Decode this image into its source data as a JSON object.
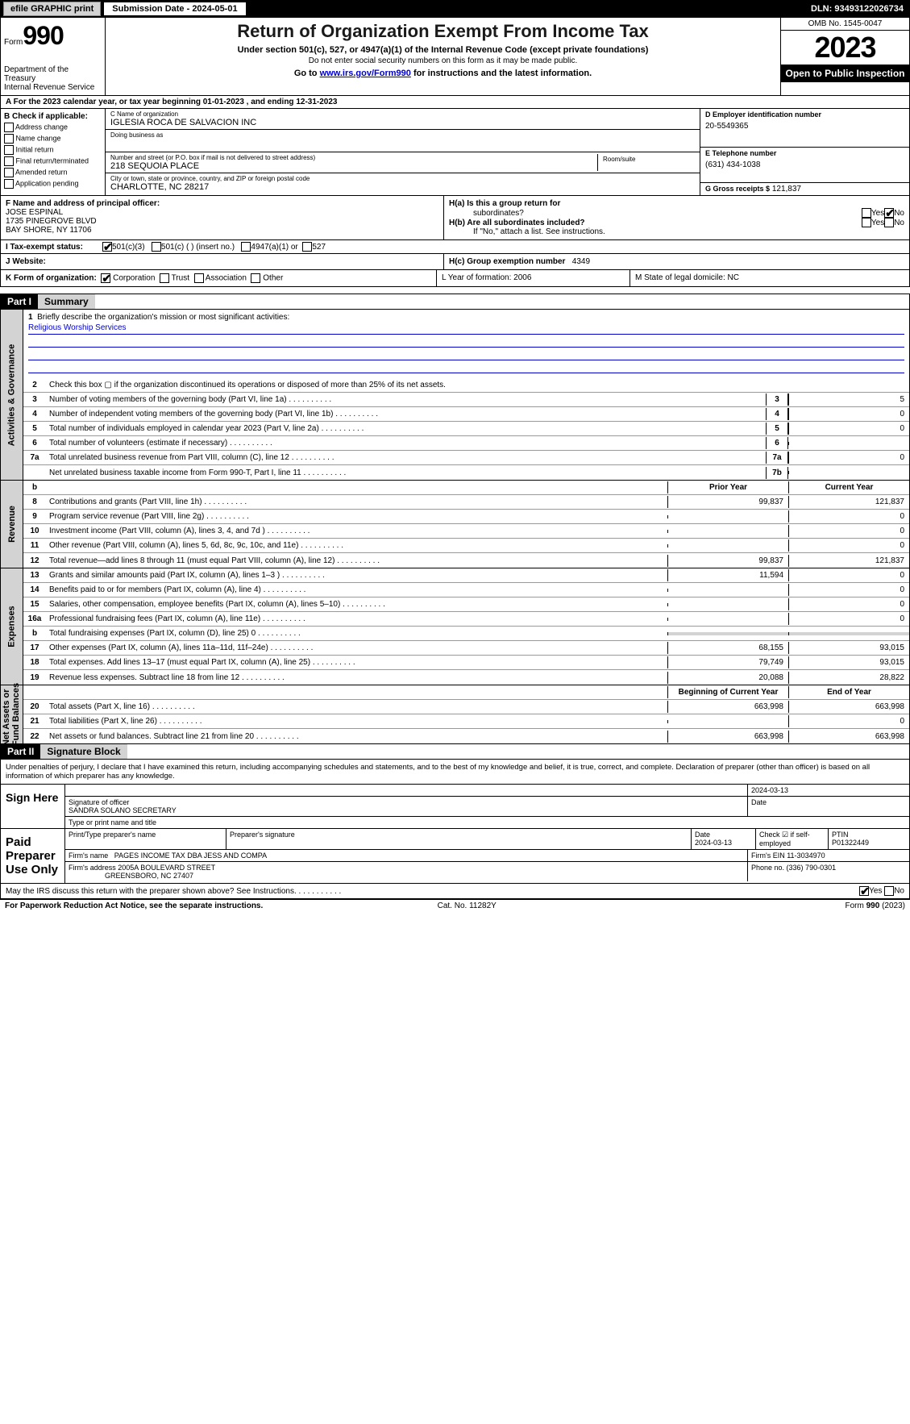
{
  "topbar": {
    "efile": "efile GRAPHIC print",
    "submission": "Submission Date - 2024-05-01",
    "dln": "DLN: 93493122026734"
  },
  "header": {
    "form_label": "Form",
    "form_no": "990",
    "dept": "Department of the Treasury",
    "irs": "Internal Revenue Service",
    "title": "Return of Organization Exempt From Income Tax",
    "sub1": "Under section 501(c), 527, or 4947(a)(1) of the Internal Revenue Code (except private foundations)",
    "sub2": "Do not enter social security numbers on this form as it may be made public.",
    "sub3_pre": "Go to ",
    "sub3_link": "www.irs.gov/Form990",
    "sub3_post": " for instructions and the latest information.",
    "omb": "OMB No. 1545-0047",
    "year": "2023",
    "open": "Open to Public Inspection"
  },
  "row_a": "A For the 2023 calendar year, or tax year beginning 01-01-2023   , and ending 12-31-2023",
  "col_b": {
    "hdr": "B Check if applicable:",
    "items": [
      "Address change",
      "Name change",
      "Initial return",
      "Final return/terminated",
      "Amended return",
      "Application pending"
    ]
  },
  "col_c": {
    "name_lbl": "C Name of organization",
    "name": "IGLESIA ROCA DE SALVACION INC",
    "dba_lbl": "Doing business as",
    "addr_lbl": "Number and street (or P.O. box if mail is not delivered to street address)",
    "addr": "218 SEQUOIA PLACE",
    "room_lbl": "Room/suite",
    "city_lbl": "City or town, state or province, country, and ZIP or foreign postal code",
    "city": "CHARLOTTE, NC  28217"
  },
  "col_d": {
    "lbl": "D Employer identification number",
    "val": "20-5549365"
  },
  "col_e": {
    "lbl": "E Telephone number",
    "val": "(631) 434-1038"
  },
  "col_g": {
    "lbl": "G Gross receipts $",
    "val": "121,837"
  },
  "row_f": {
    "lbl": "F  Name and address of principal officer:",
    "name": "JOSE ESPINAL",
    "addr1": "1735 PINEGROVE BLVD",
    "addr2": "BAY SHORE, NY  11706"
  },
  "row_h": {
    "ha": "H(a)  Is this a group return for",
    "ha2": "subordinates?",
    "hb": "H(b)  Are all subordinates included?",
    "hb2": "If \"No,\" attach a list. See instructions.",
    "yes": "Yes",
    "no": "No"
  },
  "row_i": {
    "lbl": "I  Tax-exempt status:",
    "o1": "501(c)(3)",
    "o2": "501(c) (  ) (insert no.)",
    "o3": "4947(a)(1) or",
    "o4": "527"
  },
  "row_j": {
    "lbl": "J  Website:"
  },
  "row_hc": {
    "lbl": "H(c)  Group exemption number ",
    "val": "4349"
  },
  "row_k": {
    "lbl": "K Form of organization:",
    "o1": "Corporation",
    "o2": "Trust",
    "o3": "Association",
    "o4": "Other"
  },
  "row_l": "L Year of formation: 2006",
  "row_m": "M State of legal domicile: NC",
  "part1": {
    "hdr": "Part I",
    "title": "Summary"
  },
  "mission": {
    "n": "1",
    "t": "Briefly describe the organization's mission or most significant activities:",
    "val": "Religious Worship Services"
  },
  "gov_lines": [
    {
      "n": "2",
      "t": "Check this box ▢ if the organization discontinued its operations or disposed of more than 25% of its net assets."
    },
    {
      "n": "3",
      "t": "Number of voting members of the governing body (Part VI, line 1a)",
      "b": "3",
      "v": "5"
    },
    {
      "n": "4",
      "t": "Number of independent voting members of the governing body (Part VI, line 1b)",
      "b": "4",
      "v": "0"
    },
    {
      "n": "5",
      "t": "Total number of individuals employed in calendar year 2023 (Part V, line 2a)",
      "b": "5",
      "v": "0"
    },
    {
      "n": "6",
      "t": "Total number of volunteers (estimate if necessary)",
      "b": "6",
      "v": ""
    },
    {
      "n": "7a",
      "t": "Total unrelated business revenue from Part VIII, column (C), line 12",
      "b": "7a",
      "v": "0"
    },
    {
      "n": "",
      "t": "Net unrelated business taxable income from Form 990-T, Part I, line 11",
      "b": "7b",
      "v": ""
    }
  ],
  "rev_hdr": {
    "prior": "Prior Year",
    "curr": "Current Year"
  },
  "rev_lines": [
    {
      "n": "8",
      "t": "Contributions and grants (Part VIII, line 1h)",
      "p": "99,837",
      "c": "121,837"
    },
    {
      "n": "9",
      "t": "Program service revenue (Part VIII, line 2g)",
      "p": "",
      "c": "0"
    },
    {
      "n": "10",
      "t": "Investment income (Part VIII, column (A), lines 3, 4, and 7d )",
      "p": "",
      "c": "0"
    },
    {
      "n": "11",
      "t": "Other revenue (Part VIII, column (A), lines 5, 6d, 8c, 9c, 10c, and 11e)",
      "p": "",
      "c": "0"
    },
    {
      "n": "12",
      "t": "Total revenue—add lines 8 through 11 (must equal Part VIII, column (A), line 12)",
      "p": "99,837",
      "c": "121,837"
    }
  ],
  "exp_lines": [
    {
      "n": "13",
      "t": "Grants and similar amounts paid (Part IX, column (A), lines 1–3 )",
      "p": "11,594",
      "c": "0"
    },
    {
      "n": "14",
      "t": "Benefits paid to or for members (Part IX, column (A), line 4)",
      "p": "",
      "c": "0"
    },
    {
      "n": "15",
      "t": "Salaries, other compensation, employee benefits (Part IX, column (A), lines 5–10)",
      "p": "",
      "c": "0"
    },
    {
      "n": "16a",
      "t": "Professional fundraising fees (Part IX, column (A), line 11e)",
      "p": "",
      "c": "0"
    },
    {
      "n": "b",
      "t": "Total fundraising expenses (Part IX, column (D), line 25) 0",
      "p": "shade",
      "c": "shade"
    },
    {
      "n": "17",
      "t": "Other expenses (Part IX, column (A), lines 11a–11d, 11f–24e)",
      "p": "68,155",
      "c": "93,015"
    },
    {
      "n": "18",
      "t": "Total expenses. Add lines 13–17 (must equal Part IX, column (A), line 25)",
      "p": "79,749",
      "c": "93,015"
    },
    {
      "n": "19",
      "t": "Revenue less expenses. Subtract line 18 from line 12",
      "p": "20,088",
      "c": "28,822"
    }
  ],
  "na_hdr": {
    "b": "Beginning of Current Year",
    "e": "End of Year"
  },
  "na_lines": [
    {
      "n": "20",
      "t": "Total assets (Part X, line 16)",
      "p": "663,998",
      "c": "663,998"
    },
    {
      "n": "21",
      "t": "Total liabilities (Part X, line 26)",
      "p": "",
      "c": "0"
    },
    {
      "n": "22",
      "t": "Net assets or fund balances. Subtract line 21 from line 20",
      "p": "663,998",
      "c": "663,998"
    }
  ],
  "part2": {
    "hdr": "Part II",
    "title": "Signature Block"
  },
  "decl": "Under penalties of perjury, I declare that I have examined this return, including accompanying schedules and statements, and to the best of my knowledge and belief, it is true, correct, and complete. Declaration of preparer (other than officer) is based on all information of which preparer has any knowledge.",
  "sign": {
    "l": "Sign Here",
    "date": "2024-03-13",
    "sig_lbl": "Signature of officer",
    "name": "SANDRA SOLANO  SECRETARY",
    "name_lbl": "Type or print name and title",
    "date_lbl": "Date"
  },
  "paid": {
    "l": "Paid Preparer Use Only",
    "h1": "Print/Type preparer's name",
    "h2": "Preparer's signature",
    "h3": "Date",
    "d3": "2024-03-13",
    "h4": "Check ☑ if self-employed",
    "h5": "PTIN",
    "ptin": "P01322449",
    "firm_lbl": "Firm's name ",
    "firm": "PAGES INCOME TAX DBA JESS AND COMPA",
    "ein_lbl": "Firm's EIN ",
    "ein": "11-3034970",
    "addr_lbl": "Firm's address ",
    "addr1": "2005A BOULEVARD STREET",
    "addr2": "GREENSBORO, NC  27407",
    "ph_lbl": "Phone no. ",
    "ph": "(336) 790-0301"
  },
  "discuss": "May the IRS discuss this return with the preparer shown above? See Instructions.",
  "footer": {
    "l": "For Paperwork Reduction Act Notice, see the separate instructions.",
    "m": "Cat. No. 11282Y",
    "r": "Form 990 (2023)"
  }
}
